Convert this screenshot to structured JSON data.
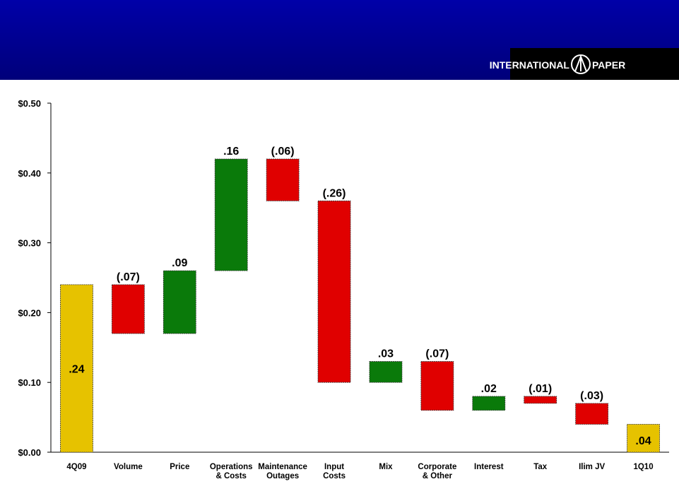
{
  "header": {
    "logo_left": "INTERNATIONAL",
    "logo_right": "PAPER"
  },
  "chart_data": {
    "type": "waterfall",
    "categories": [
      "4Q09",
      "Volume",
      "Price",
      "Operations\n& Costs",
      "Maintenance\nOutages",
      "Input\nCosts",
      "Mix",
      "Corporate\n& Other",
      "Interest",
      "Tax",
      "Ilim JV",
      "1Q10"
    ],
    "values": [
      0.24,
      -0.07,
      0.09,
      0.16,
      -0.06,
      -0.26,
      0.03,
      -0.07,
      0.02,
      -0.01,
      -0.03,
      0.04
    ],
    "value_labels": [
      ".24",
      "(.07)",
      ".09",
      ".16",
      "(.06)",
      "(.26)",
      ".03",
      "(.07)",
      ".02",
      "(.01)",
      "(.03)",
      ".04"
    ],
    "colors": [
      "#e6c200",
      "#e00000",
      "#0a7a0a",
      "#0a7a0a",
      "#e00000",
      "#e00000",
      "#0a7a0a",
      "#e00000",
      "#0a7a0a",
      "#e00000",
      "#e00000",
      "#e6c200"
    ],
    "ylim": [
      0,
      0.5
    ],
    "yticks": [
      {
        "value": 0,
        "label": "$0.00"
      },
      {
        "value": 0.1,
        "label": "$0.10"
      },
      {
        "value": 0.2,
        "label": "$0.20"
      },
      {
        "value": 0.3,
        "label": "$0.30"
      },
      {
        "value": 0.4,
        "label": "$0.40"
      },
      {
        "value": 0.5,
        "label": "$0.50"
      }
    ]
  }
}
